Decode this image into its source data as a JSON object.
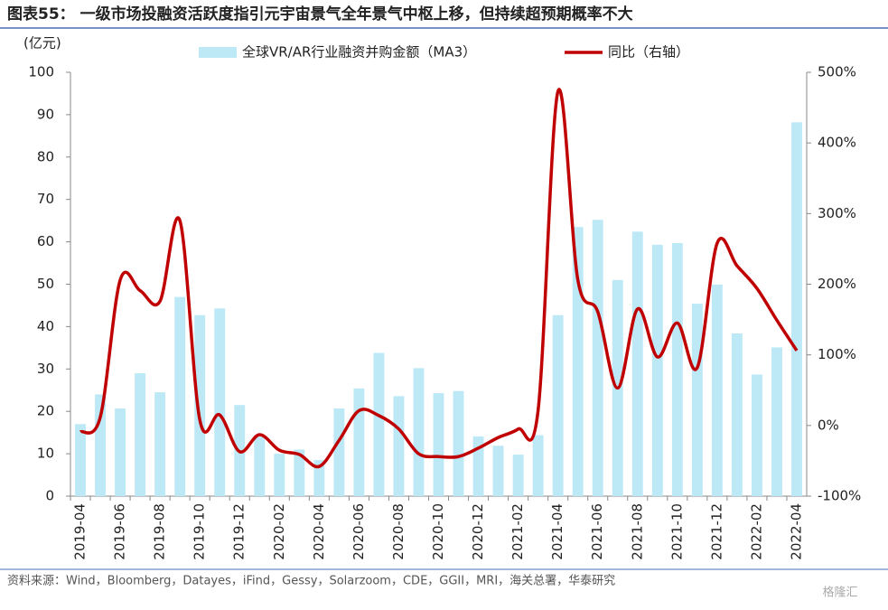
{
  "title": "图表55：  一级市场投融资活跃度指引元宇宙景气全年景气中枢上移，但持续超预期概率不大",
  "source": "资料来源：Wind，Bloomberg，Datayes，iFind，Gessy，Solarzoom，CDE，GGII，MRI，海关总署，华泰研究",
  "watermark": "格隆汇",
  "chart_data": {
    "type": "bar_line",
    "y_unit": "(亿元)",
    "categories": [
      "2019-04",
      null,
      "2019-06",
      null,
      "2019-08",
      null,
      "2019-10",
      null,
      "2019-12",
      null,
      "2020-02",
      null,
      "2020-04",
      null,
      "2020-06",
      null,
      "2020-08",
      null,
      "2020-10",
      null,
      "2020-12",
      null,
      "2021-02",
      null,
      "2021-04",
      null,
      "2021-06",
      null,
      "2021-08",
      null,
      "2021-10",
      null,
      "2021-12",
      null,
      "2022-02",
      null,
      "2022-04"
    ],
    "series": [
      {
        "name": "全球VR/AR行业融资并购金额（MA3）",
        "type": "bar",
        "color": "#bde9f7",
        "values": [
          17,
          24,
          20.7,
          29,
          24.5,
          47,
          42.7,
          44.3,
          21.5,
          14,
          10,
          11,
          8.5,
          20.7,
          25.4,
          33.8,
          23.6,
          30.2,
          24.3,
          24.8,
          14.1,
          11.9,
          9.8,
          14.4,
          42.7,
          63.5,
          65.2,
          51,
          62.4,
          59.3,
          59.7,
          45.4,
          49.9,
          38.4,
          28.7,
          35.1,
          88.2
        ]
      },
      {
        "name": "同比（右轴）",
        "type": "line",
        "axis": "y2",
        "color": "#c00000",
        "values": [
          -9,
          12,
          206,
          191,
          176,
          290,
          8,
          15,
          -37,
          -13,
          -35,
          -41,
          -58,
          -21,
          21,
          14,
          -5,
          -40,
          -44,
          -44,
          -32,
          -17,
          -5,
          21,
          473,
          206,
          161,
          53,
          165,
          97,
          145,
          82,
          258,
          226,
          194,
          149,
          106
        ]
      }
    ],
    "ylim": [
      0,
      100
    ],
    "yticks": [
      0,
      10,
      20,
      30,
      40,
      50,
      60,
      70,
      80,
      90,
      100
    ],
    "y2lim": [
      -100,
      500
    ],
    "y2ticks": [
      {
        "value": -100,
        "label": "-100%"
      },
      {
        "value": 0,
        "label": "0%"
      },
      {
        "value": 100,
        "label": "100%"
      },
      {
        "value": 200,
        "label": "200%"
      },
      {
        "value": 300,
        "label": "300%"
      },
      {
        "value": 400,
        "label": "400%"
      },
      {
        "value": 500,
        "label": "500%"
      }
    ]
  }
}
